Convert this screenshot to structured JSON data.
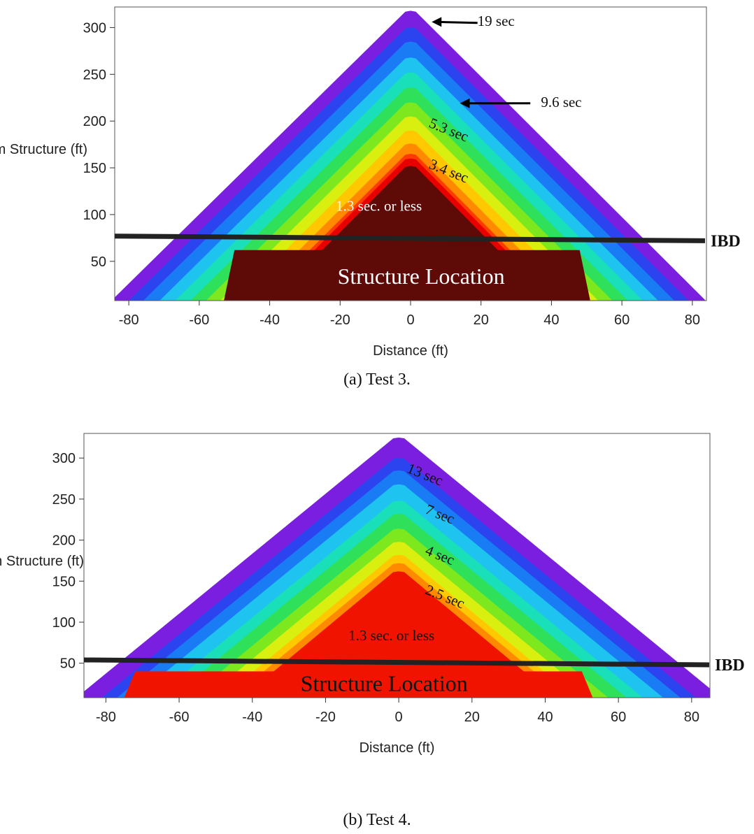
{
  "chart_data": [
    {
      "type": "heatmap",
      "title": "",
      "xlabel": "Distance (ft)",
      "ylabel": "Distances from Structure (ft)",
      "xlim": [
        -84,
        84
      ],
      "ylim": [
        8,
        322
      ],
      "xticks": [
        -80,
        -60,
        -40,
        -20,
        0,
        20,
        40,
        60,
        80
      ],
      "yticks": [
        50,
        100,
        150,
        200,
        250,
        300
      ],
      "caption": "(a) Test 3.",
      "contours": [
        {
          "label": "19 sec",
          "apex": 318,
          "color": "#7a1fe0"
        },
        {
          "label": "",
          "apex": 300,
          "color": "#2b44f0"
        },
        {
          "label": "",
          "apex": 285,
          "color": "#1a7cf5"
        },
        {
          "label": "9.6 sec",
          "apex": 268,
          "color": "#1ec3f0"
        },
        {
          "label": "",
          "apex": 252,
          "color": "#19e0b8"
        },
        {
          "label": "",
          "apex": 236,
          "color": "#2ee05a"
        },
        {
          "label": "",
          "apex": 220,
          "color": "#7ee81e"
        },
        {
          "label": "5.3 sec",
          "apex": 205,
          "color": "#d8ef10"
        },
        {
          "label": "",
          "apex": 190,
          "color": "#ffc800"
        },
        {
          "label": "",
          "apex": 176,
          "color": "#ff8a00"
        },
        {
          "label": "3.4 sec",
          "apex": 165,
          "color": "#ff3a00"
        },
        {
          "label": "",
          "apex": 160,
          "color": "#e80000"
        },
        {
          "label": "1.3 sec. or less",
          "apex": 152,
          "color": "#5e0a06"
        }
      ],
      "annotations": {
        "ibd": "IBD",
        "ibd_y": [
          77,
          72
        ],
        "structure": "Structure Location",
        "core_label": "1.3 sec. or less"
      }
    },
    {
      "type": "heatmap",
      "title": "",
      "xlabel": "Distance (ft)",
      "ylabel": "Distance from Structure (ft)",
      "xlim": [
        -86,
        85
      ],
      "ylim": [
        8,
        330
      ],
      "xticks": [
        -80,
        -60,
        -40,
        -20,
        0,
        20,
        40,
        60,
        80
      ],
      "yticks": [
        50,
        100,
        150,
        200,
        250,
        300
      ],
      "caption": "(b) Test 4.",
      "contours": [
        {
          "label": "",
          "apex": 325,
          "color": "#7a1fe0"
        },
        {
          "label": "13 sec",
          "apex": 300,
          "color": "#2b44f0"
        },
        {
          "label": "",
          "apex": 285,
          "color": "#1a7cf5"
        },
        {
          "label": "7 sec",
          "apex": 268,
          "color": "#1ec3f0"
        },
        {
          "label": "",
          "apex": 248,
          "color": "#19e0b8"
        },
        {
          "label": "4 sec",
          "apex": 232,
          "color": "#2ee05a"
        },
        {
          "label": "",
          "apex": 214,
          "color": "#7ee81e"
        },
        {
          "label": "",
          "apex": 198,
          "color": "#d8ef10"
        },
        {
          "label": "2.5 sec",
          "apex": 182,
          "color": "#ffc800"
        },
        {
          "label": "",
          "apex": 172,
          "color": "#ff8a00"
        },
        {
          "label": "1.3 sec. or less",
          "apex": 162,
          "color": "#f01400"
        }
      ],
      "annotations": {
        "ibd": "IBD",
        "ibd_y": [
          54,
          48
        ],
        "structure": "Structure Location",
        "core_label": "1.3 sec. or less"
      }
    }
  ]
}
